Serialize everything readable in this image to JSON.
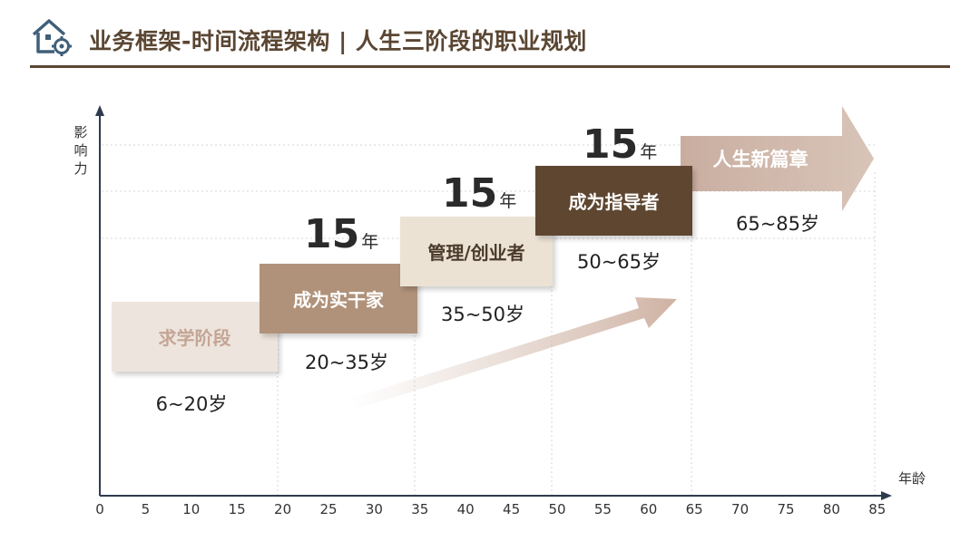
{
  "header": {
    "title": "业务框架-时间流程架构 | 人生三阶段的职业规划",
    "logo_icon": "house-gear-icon"
  },
  "axes": {
    "y_title": "影响力",
    "x_title": "年龄",
    "x_ticks": [
      "0",
      "5",
      "10",
      "15",
      "20",
      "25",
      "30",
      "35",
      "40",
      "45",
      "50",
      "55",
      "60",
      "65",
      "70",
      "75",
      "80",
      "85"
    ]
  },
  "stages": [
    {
      "label": "求学阶段",
      "age_range": "6~20岁"
    },
    {
      "label": "成为实干家",
      "age_range": "20~35岁",
      "duration": "15",
      "duration_unit": "年"
    },
    {
      "label": "管理/创业者",
      "age_range": "35~50岁",
      "duration": "15",
      "duration_unit": "年"
    },
    {
      "label": "成为指导者",
      "age_range": "50~65岁",
      "duration": "15",
      "duration_unit": "年"
    },
    {
      "label": "人生新篇章",
      "age_range": "65~85岁"
    }
  ],
  "colors": {
    "brand": "#5a4632",
    "stage1": "#ede5dd",
    "stage2": "#b0927a",
    "stage3": "#ebe2d4",
    "stage4": "#5e4630",
    "stage5": "#cfb8a9",
    "axis": "#2e3b4e"
  }
}
